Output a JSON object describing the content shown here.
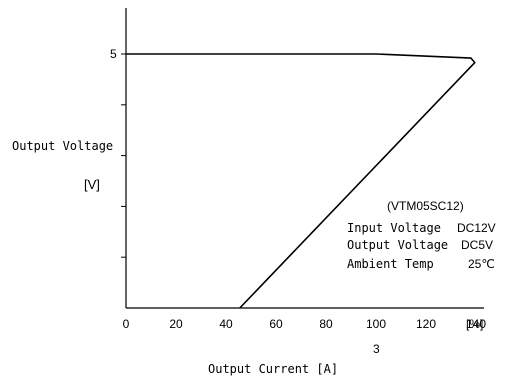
{
  "chart_data": {
    "type": "line",
    "y_axis": {
      "label": "Output Voltage",
      "unit": "[V]",
      "range": [
        0,
        5
      ],
      "tick_labels": [
        {
          "value": 5,
          "text": "5"
        }
      ],
      "minor_ticks": [
        4,
        3,
        2,
        1
      ]
    },
    "x_axis": {
      "range": [
        0,
        150
      ],
      "unit": "[%]",
      "label": "Output Current [A]",
      "secondary_tick_label": {
        "value": 100,
        "text": "3"
      },
      "ticks": [
        {
          "value": 0,
          "text": "0"
        },
        {
          "value": 20,
          "text": "20"
        },
        {
          "value": 40,
          "text": "40"
        },
        {
          "value": 60,
          "text": "60"
        },
        {
          "value": 80,
          "text": "80"
        },
        {
          "value": 100,
          "text": "100"
        },
        {
          "value": 120,
          "text": "120"
        },
        {
          "value": 140,
          "text": "140"
        }
      ]
    },
    "series": [
      {
        "points": [
          {
            "x": 0,
            "y": 5.0
          },
          {
            "x": 100,
            "y": 5.0
          },
          {
            "x": 138,
            "y": 4.92
          },
          {
            "x": 139.5,
            "y": 4.83
          },
          {
            "x": 45.5,
            "y": 0
          }
        ]
      }
    ],
    "annotation": {
      "model": "(VTM05SC12)",
      "rows": [
        {
          "label": "Input Voltage",
          "value": "DC12V"
        },
        {
          "label": "Output Voltage",
          "value": "DC5V"
        },
        {
          "label": "Ambient Temp",
          "value": "25℃"
        }
      ]
    }
  }
}
